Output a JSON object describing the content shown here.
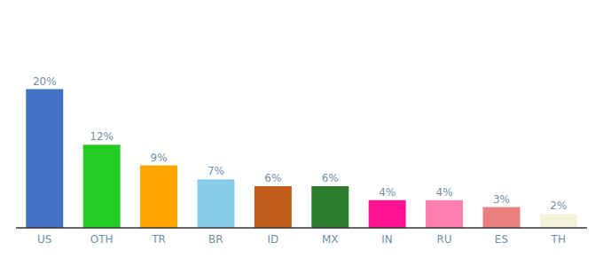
{
  "chart_data": {
    "type": "bar",
    "categories": [
      "US",
      "OTH",
      "TR",
      "BR",
      "ID",
      "MX",
      "IN",
      "RU",
      "ES",
      "TH"
    ],
    "values": [
      20,
      12,
      9,
      7,
      6,
      6,
      4,
      4,
      3,
      2
    ],
    "value_labels": [
      "20%",
      "12%",
      "9%",
      "7%",
      "6%",
      "6%",
      "4%",
      "4%",
      "3%",
      "2%"
    ],
    "colors": [
      "#4472C4",
      "#22CC22",
      "#FFA500",
      "#87CEEB",
      "#C05A1B",
      "#2E7D2E",
      "#FF1493",
      "#FF80B0",
      "#E88080",
      "#F5F2DC"
    ],
    "ylim": [
      0,
      28
    ],
    "data_labels": true,
    "tick_labels": "x",
    "grid": false
  }
}
